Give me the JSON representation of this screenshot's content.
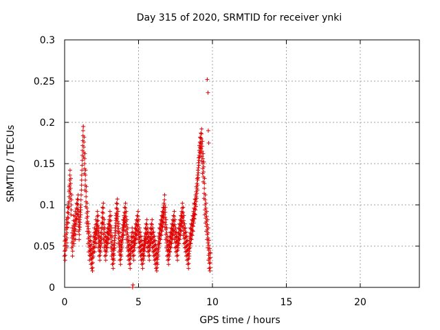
{
  "chart_data": {
    "type": "scatter",
    "title": "Day 315 of 2020, SRMTID for receiver ynki",
    "xlabel": "GPS time / hours",
    "ylabel": "SRMTID / TECUs",
    "xlim": [
      0,
      24
    ],
    "ylim": [
      0,
      0.3
    ],
    "xticks": [
      0,
      5,
      10,
      15,
      20
    ],
    "xtick_labels": [
      "0",
      "5",
      "10",
      "15",
      "20"
    ],
    "yticks": [
      0,
      0.05,
      0.1,
      0.15,
      0.2,
      0.25,
      0.3
    ],
    "ytick_labels": [
      "0",
      "0.05",
      "0.1",
      "0.15",
      "0.2",
      "0.25",
      "0.3"
    ],
    "grid": true,
    "marker": "+",
    "series": [
      {
        "name": "SRMTID",
        "color": "#e00000",
        "x": [
          0.0,
          0.05,
          0.1,
          0.15,
          0.2,
          0.25,
          0.3,
          0.35,
          0.4,
          0.45,
          0.5,
          0.55,
          0.6,
          0.65,
          0.7,
          0.75,
          0.8,
          0.85,
          0.9,
          0.95,
          1.0,
          1.05,
          1.1,
          1.15,
          1.2,
          1.25,
          1.3,
          1.35,
          1.4,
          1.45,
          1.5,
          1.55,
          1.6,
          1.65,
          1.7,
          1.75,
          1.8,
          1.85,
          1.9,
          1.95,
          2.0,
          2.05,
          2.1,
          2.15,
          2.2,
          2.25,
          2.3,
          2.35,
          2.4,
          2.45,
          2.5,
          2.55,
          2.6,
          2.65,
          2.7,
          2.75,
          2.8,
          2.85,
          2.9,
          2.95,
          3.0,
          3.05,
          3.1,
          3.15,
          3.2,
          3.25,
          3.3,
          3.35,
          3.4,
          3.45,
          3.5,
          3.55,
          3.6,
          3.65,
          3.7,
          3.75,
          3.8,
          3.85,
          3.9,
          3.95,
          4.0,
          4.05,
          4.1,
          4.15,
          4.2,
          4.25,
          4.3,
          4.35,
          4.4,
          4.45,
          4.5,
          4.55,
          4.6,
          4.65,
          4.7,
          4.75,
          4.8,
          4.85,
          4.9,
          4.95,
          5.0,
          5.05,
          5.1,
          5.15,
          5.2,
          5.25,
          5.3,
          5.35,
          5.4,
          5.45,
          5.5,
          5.55,
          5.6,
          5.65,
          5.7,
          5.75,
          5.8,
          5.85,
          5.9,
          5.95,
          6.0,
          6.05,
          6.1,
          6.15,
          6.2,
          6.25,
          6.3,
          6.35,
          6.4,
          6.45,
          6.5,
          6.55,
          6.6,
          6.65,
          6.7,
          6.75,
          6.8,
          6.85,
          6.9,
          6.95,
          7.0,
          7.05,
          7.1,
          7.15,
          7.2,
          7.25,
          7.3,
          7.35,
          7.4,
          7.45,
          7.5,
          7.55,
          7.6,
          7.65,
          7.7,
          7.75,
          7.8,
          7.85,
          7.9,
          7.95,
          8.0,
          8.05,
          8.1,
          8.15,
          8.2,
          8.25,
          8.3,
          8.35,
          8.4,
          8.45,
          8.5,
          8.55,
          8.6,
          8.65,
          8.7,
          8.75,
          8.8,
          8.85,
          8.9,
          8.95,
          9.0,
          9.05,
          9.1,
          9.15,
          9.2,
          9.25,
          9.3,
          9.35,
          9.4,
          9.45,
          9.5,
          9.55,
          9.6,
          9.65,
          9.7,
          9.75,
          9.8,
          9.85,
          4.6,
          4.62
        ],
        "y": [
          0.05,
          0.045,
          0.07,
          0.06,
          0.085,
          0.09,
          0.11,
          0.13,
          0.12,
          0.1,
          0.06,
          0.05,
          0.075,
          0.065,
          0.08,
          0.07,
          0.09,
          0.095,
          0.1,
          0.08,
          0.07,
          0.085,
          0.1,
          0.13,
          0.16,
          0.19,
          0.17,
          0.15,
          0.13,
          0.11,
          0.09,
          0.08,
          0.065,
          0.055,
          0.045,
          0.05,
          0.04,
          0.035,
          0.03,
          0.05,
          0.06,
          0.055,
          0.07,
          0.065,
          0.08,
          0.075,
          0.06,
          0.05,
          0.045,
          0.055,
          0.065,
          0.085,
          0.09,
          0.07,
          0.06,
          0.05,
          0.045,
          0.055,
          0.06,
          0.065,
          0.07,
          0.08,
          0.075,
          0.06,
          0.05,
          0.04,
          0.035,
          0.045,
          0.06,
          0.075,
          0.09,
          0.095,
          0.08,
          0.065,
          0.055,
          0.045,
          0.04,
          0.05,
          0.06,
          0.07,
          0.075,
          0.085,
          0.09,
          0.08,
          0.07,
          0.06,
          0.05,
          0.045,
          0.04,
          0.035,
          0.05,
          0.06,
          0.055,
          0.05,
          0.045,
          0.06,
          0.065,
          0.07,
          0.075,
          0.08,
          0.07,
          0.06,
          0.055,
          0.05,
          0.045,
          0.04,
          0.035,
          0.045,
          0.05,
          0.06,
          0.065,
          0.07,
          0.06,
          0.055,
          0.05,
          0.045,
          0.06,
          0.065,
          0.07,
          0.06,
          0.055,
          0.05,
          0.045,
          0.04,
          0.035,
          0.03,
          0.04,
          0.05,
          0.06,
          0.065,
          0.07,
          0.075,
          0.08,
          0.085,
          0.09,
          0.1,
          0.085,
          0.07,
          0.06,
          0.05,
          0.045,
          0.04,
          0.05,
          0.055,
          0.06,
          0.065,
          0.07,
          0.075,
          0.08,
          0.07,
          0.06,
          0.055,
          0.05,
          0.045,
          0.06,
          0.065,
          0.07,
          0.075,
          0.08,
          0.09,
          0.085,
          0.075,
          0.065,
          0.06,
          0.055,
          0.05,
          0.045,
          0.04,
          0.035,
          0.05,
          0.06,
          0.065,
          0.07,
          0.075,
          0.08,
          0.09,
          0.095,
          0.1,
          0.11,
          0.12,
          0.13,
          0.145,
          0.16,
          0.17,
          0.175,
          0.18,
          0.165,
          0.15,
          0.14,
          0.12,
          0.1,
          0.09,
          0.08,
          0.07,
          0.06,
          0.045,
          0.035,
          0.03,
          0.0,
          0.003
        ],
        "extra_points": {
          "x": [
            9.65,
            9.7,
            9.72,
            9.75
          ],
          "y": [
            0.252,
            0.236,
            0.19,
            0.175
          ]
        }
      }
    ]
  }
}
